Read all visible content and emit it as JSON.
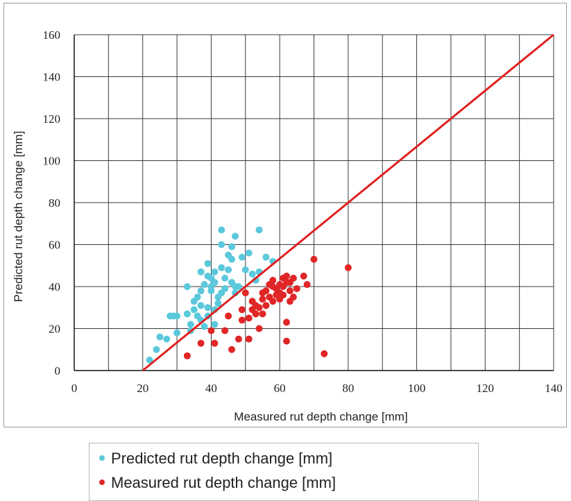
{
  "chart_data": {
    "type": "scatter",
    "title": "",
    "xlabel": "Measured rut depth change [mm]",
    "ylabel": "Predicted rut depth change [mm]",
    "xlim": [
      0,
      140
    ],
    "ylim": [
      0,
      160
    ],
    "x_ticks": [
      "0",
      "20",
      "40",
      "60",
      "80",
      "100",
      "120",
      "140"
    ],
    "y_ticks": [
      "0",
      "20",
      "40",
      "60",
      "80",
      "100",
      "120",
      "140",
      "160"
    ],
    "grid": true,
    "legend_position": "bottom",
    "reference_line": {
      "color": "#e02020",
      "points": [
        [
          20,
          0
        ],
        [
          140,
          160
        ]
      ]
    },
    "series": [
      {
        "name": "Predicted rut depth change [mm]",
        "color": "#5bc8dc",
        "points": [
          [
            22,
            5
          ],
          [
            24,
            10
          ],
          [
            25,
            16
          ],
          [
            27,
            15
          ],
          [
            28,
            26
          ],
          [
            29,
            26
          ],
          [
            30,
            18
          ],
          [
            30,
            26
          ],
          [
            33,
            40
          ],
          [
            33,
            27
          ],
          [
            34,
            19
          ],
          [
            34,
            22
          ],
          [
            35,
            33
          ],
          [
            35,
            29
          ],
          [
            36,
            35
          ],
          [
            36,
            26
          ],
          [
            37,
            31
          ],
          [
            37,
            24
          ],
          [
            37,
            38
          ],
          [
            38,
            41
          ],
          [
            38,
            21
          ],
          [
            37,
            47
          ],
          [
            39,
            45
          ],
          [
            39,
            51
          ],
          [
            39,
            30
          ],
          [
            39,
            26
          ],
          [
            40,
            40
          ],
          [
            40,
            44
          ],
          [
            40,
            38
          ],
          [
            41,
            22
          ],
          [
            41,
            42
          ],
          [
            41,
            47
          ],
          [
            41,
            29
          ],
          [
            42,
            35
          ],
          [
            42,
            32
          ],
          [
            43,
            60
          ],
          [
            43,
            67
          ],
          [
            43,
            49
          ],
          [
            43,
            37
          ],
          [
            44,
            44
          ],
          [
            44,
            39
          ],
          [
            45,
            55
          ],
          [
            45,
            48
          ],
          [
            46,
            59
          ],
          [
            46,
            53
          ],
          [
            46,
            42
          ],
          [
            47,
            64
          ],
          [
            47,
            37
          ],
          [
            47,
            40
          ],
          [
            48,
            40
          ],
          [
            49,
            54
          ],
          [
            50,
            48
          ],
          [
            51,
            56
          ],
          [
            52,
            46
          ],
          [
            53,
            43
          ],
          [
            54,
            67
          ],
          [
            54,
            47
          ],
          [
            56,
            54
          ],
          [
            58,
            52
          ]
        ]
      },
      {
        "name": "Measured rut depth change [mm]",
        "color": "#e02626",
        "points": [
          [
            33,
            7
          ],
          [
            37,
            13
          ],
          [
            40,
            19
          ],
          [
            41,
            13
          ],
          [
            44,
            19
          ],
          [
            45,
            26
          ],
          [
            46,
            10
          ],
          [
            48,
            15
          ],
          [
            49,
            24
          ],
          [
            49,
            29
          ],
          [
            50,
            37
          ],
          [
            51,
            25
          ],
          [
            51,
            15
          ],
          [
            52,
            33
          ],
          [
            52,
            29
          ],
          [
            53,
            31
          ],
          [
            53,
            27
          ],
          [
            54,
            20
          ],
          [
            54,
            30
          ],
          [
            55,
            34
          ],
          [
            55,
            27
          ],
          [
            55,
            37
          ],
          [
            56,
            31
          ],
          [
            56,
            38
          ],
          [
            57,
            35
          ],
          [
            57,
            41
          ],
          [
            58,
            40
          ],
          [
            58,
            43
          ],
          [
            58,
            33
          ],
          [
            59,
            39
          ],
          [
            59,
            36
          ],
          [
            60,
            37
          ],
          [
            60,
            41
          ],
          [
            60,
            34
          ],
          [
            61,
            44
          ],
          [
            61,
            40
          ],
          [
            61,
            36
          ],
          [
            62,
            23
          ],
          [
            62,
            42
          ],
          [
            62,
            45
          ],
          [
            62,
            14
          ],
          [
            63,
            42
          ],
          [
            63,
            38
          ],
          [
            63,
            33
          ],
          [
            64,
            44
          ],
          [
            64,
            35
          ],
          [
            65,
            39
          ],
          [
            67,
            45
          ],
          [
            68,
            41
          ],
          [
            70,
            53
          ],
          [
            73,
            8
          ],
          [
            80,
            49
          ]
        ]
      }
    ]
  }
}
